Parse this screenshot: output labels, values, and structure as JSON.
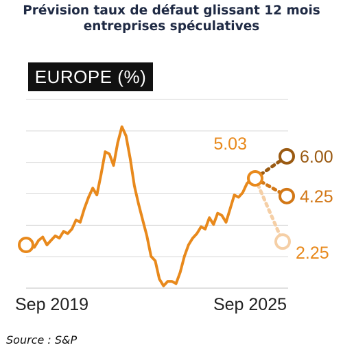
{
  "title_line1": "Prévision taux de défaut glissant 12 mois",
  "title_line2": "entreprises spéculatives",
  "region_label": "EUROPE (%)",
  "source": "Source : S&P",
  "colors": {
    "line": "#e8891c",
    "scenario_high": "#9a5a12",
    "scenario_base": "#d27716",
    "scenario_low": "#f5cfa6",
    "grid": "#d6d6d6",
    "title": "#1f2a44",
    "badge": "#111111"
  },
  "chart_data": {
    "type": "line",
    "title": "",
    "xlabel": "",
    "ylabel": "",
    "x_ticks": [
      "Sep 2019",
      "Sep 2025"
    ],
    "ylim": [
      0.2,
      8.5
    ],
    "grid": true,
    "series": [
      {
        "values": [
          2.1,
          2.1,
          2.0,
          2.3,
          2.45,
          2.1,
          2.3,
          2.5,
          2.4,
          2.7,
          2.6,
          2.8,
          3.2,
          3.1,
          3.7,
          4.2,
          4.6,
          4.3,
          5.2,
          6.2,
          6.1,
          5.6,
          6.6,
          7.3,
          6.9,
          5.9,
          4.7,
          3.9,
          3.2,
          2.5,
          1.6,
          1.4,
          0.6,
          0.3,
          0.5,
          0.5,
          0.4,
          0.9,
          1.6,
          2.1,
          2.4,
          2.6,
          2.9,
          2.8,
          3.3,
          3.0,
          3.5,
          3.4,
          3.1,
          3.7,
          4.3,
          4.2,
          4.4,
          4.8,
          5.0,
          5.03
        ]
      }
    ],
    "endpoints": {
      "start": 2.1,
      "last_actual": 5.03,
      "forecast_high": 6.0,
      "forecast_base": 4.25,
      "forecast_low": 2.25
    },
    "labels": {
      "last_actual": "5.03",
      "forecast_high": "6.00",
      "forecast_base": "4.25",
      "forecast_low": "2.25"
    }
  }
}
